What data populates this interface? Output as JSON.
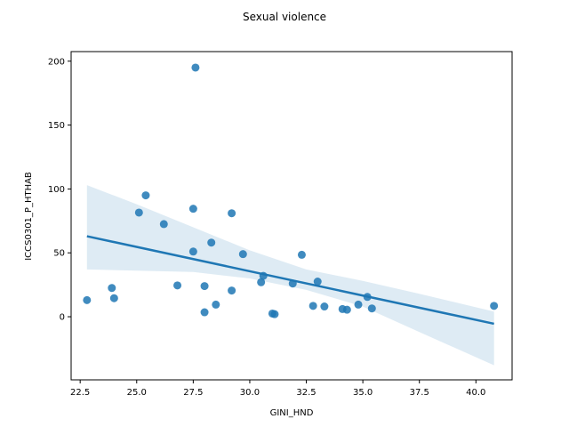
{
  "chart_data": {
    "type": "scatter",
    "title": "Sexual violence",
    "xlabel": "GINI_HND",
    "ylabel": "ICCS0301_P_HTHAB",
    "xlim": [
      22.1,
      41.6
    ],
    "ylim": [
      -49.4,
      207.5
    ],
    "xticks": [
      "22.5",
      "25.0",
      "27.5",
      "30.0",
      "32.5",
      "35.0",
      "37.5",
      "40.0"
    ],
    "yticks": [
      "0",
      "50",
      "100",
      "150",
      "200"
    ],
    "grid": false,
    "legend": "none",
    "points": [
      {
        "x": 22.8,
        "y": 13
      },
      {
        "x": 23.9,
        "y": 22.5
      },
      {
        "x": 24.0,
        "y": 14.5
      },
      {
        "x": 25.1,
        "y": 81.5
      },
      {
        "x": 25.4,
        "y": 95
      },
      {
        "x": 26.2,
        "y": 72.5
      },
      {
        "x": 26.8,
        "y": 24.5
      },
      {
        "x": 27.5,
        "y": 84.5
      },
      {
        "x": 27.5,
        "y": 51
      },
      {
        "x": 27.6,
        "y": 195
      },
      {
        "x": 28.0,
        "y": 24
      },
      {
        "x": 28.0,
        "y": 3.5
      },
      {
        "x": 28.3,
        "y": 58
      },
      {
        "x": 28.5,
        "y": 9.5
      },
      {
        "x": 29.2,
        "y": 81
      },
      {
        "x": 29.2,
        "y": 20.5
      },
      {
        "x": 29.7,
        "y": 49
      },
      {
        "x": 30.5,
        "y": 27
      },
      {
        "x": 30.6,
        "y": 32
      },
      {
        "x": 31.0,
        "y": 2.5
      },
      {
        "x": 31.1,
        "y": 2
      },
      {
        "x": 31.9,
        "y": 26
      },
      {
        "x": 32.3,
        "y": 48.5
      },
      {
        "x": 32.8,
        "y": 8.5
      },
      {
        "x": 33.0,
        "y": 27.5
      },
      {
        "x": 33.3,
        "y": 8
      },
      {
        "x": 34.1,
        "y": 6
      },
      {
        "x": 34.3,
        "y": 5.5
      },
      {
        "x": 34.8,
        "y": 9.5
      },
      {
        "x": 35.2,
        "y": 15.5
      },
      {
        "x": 35.4,
        "y": 6.5
      },
      {
        "x": 40.8,
        "y": 8.5
      }
    ],
    "regression": {
      "x": [
        22.8,
        40.8
      ],
      "y": [
        63,
        -5.5
      ]
    },
    "confidence_band": {
      "x": [
        22.8,
        25.0,
        27.5,
        30.0,
        32.5,
        35.0,
        37.5,
        40.8
      ],
      "upper": [
        103,
        88,
        70,
        52,
        37,
        28,
        18,
        4
      ],
      "lower": [
        37,
        36,
        35,
        30,
        21,
        8,
        -12,
        -38
      ]
    },
    "colors": {
      "points": "#1f77b4",
      "line": "#1f77b4",
      "band": "#1f77b4"
    }
  }
}
